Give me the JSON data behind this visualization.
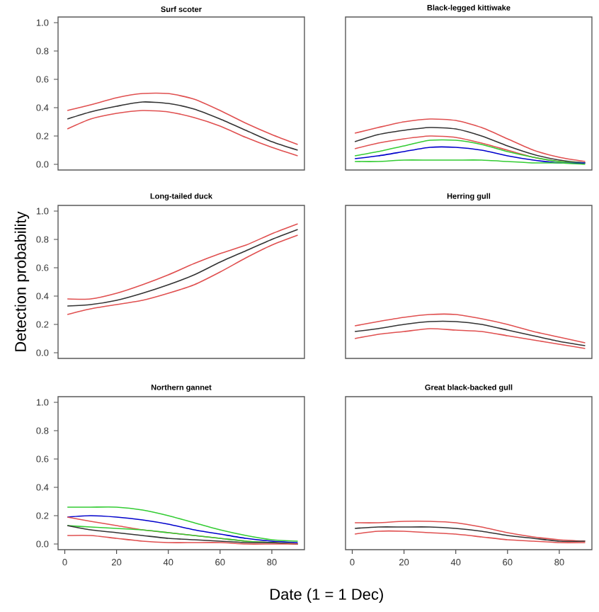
{
  "chart_data": [
    {
      "type": "line",
      "title": "Surf scoter",
      "x": [
        1,
        10,
        20,
        30,
        40,
        50,
        60,
        70,
        80,
        90
      ],
      "xlim": [
        -2.6,
        92.6
      ],
      "ylim": [
        -0.04,
        1.04
      ],
      "tick_labels": "y",
      "yticks": [
        {
          "value": 0,
          "label": "0.0"
        },
        {
          "value": 0.2,
          "label": "0.2"
        },
        {
          "value": 0.4,
          "label": "0.4"
        },
        {
          "value": 0.6,
          "label": "0.6"
        },
        {
          "value": 0.8,
          "label": "0.8"
        },
        {
          "value": 1,
          "label": "1.0"
        }
      ],
      "series": [
        {
          "color": "#e05050",
          "values": [
            0.38,
            0.42,
            0.47,
            0.5,
            0.5,
            0.46,
            0.38,
            0.29,
            0.21,
            0.14
          ]
        },
        {
          "color": "#333333",
          "values": [
            0.32,
            0.37,
            0.41,
            0.44,
            0.43,
            0.39,
            0.32,
            0.24,
            0.16,
            0.1
          ]
        },
        {
          "color": "#e05050",
          "values": [
            0.25,
            0.32,
            0.36,
            0.38,
            0.37,
            0.33,
            0.27,
            0.19,
            0.12,
            0.06
          ]
        }
      ]
    },
    {
      "type": "line",
      "title": "Black-legged kittiwake",
      "x": [
        1,
        10,
        20,
        30,
        40,
        50,
        60,
        70,
        80,
        90
      ],
      "xlim": [
        -2.6,
        92.6
      ],
      "ylim": [
        -0.04,
        1.04
      ],
      "tick_labels": false,
      "series": [
        {
          "color": "#e05050",
          "values": [
            0.22,
            0.26,
            0.3,
            0.32,
            0.31,
            0.26,
            0.18,
            0.1,
            0.05,
            0.02
          ]
        },
        {
          "color": "#333333",
          "values": [
            0.16,
            0.21,
            0.24,
            0.26,
            0.25,
            0.2,
            0.13,
            0.07,
            0.03,
            0.01
          ]
        },
        {
          "color": "#e05050",
          "values": [
            0.11,
            0.15,
            0.18,
            0.2,
            0.19,
            0.15,
            0.1,
            0.05,
            0.02,
            0.01
          ]
        },
        {
          "color": "#33cc33",
          "values": [
            0.06,
            0.09,
            0.13,
            0.17,
            0.17,
            0.14,
            0.09,
            0.05,
            0.02,
            0.01
          ]
        },
        {
          "color": "#0000cc",
          "values": [
            0.04,
            0.06,
            0.09,
            0.12,
            0.12,
            0.1,
            0.06,
            0.03,
            0.01,
            0.01
          ]
        },
        {
          "color": "#33cc33",
          "values": [
            0.02,
            0.02,
            0.03,
            0.03,
            0.03,
            0.03,
            0.02,
            0.01,
            0.01,
            0.0
          ]
        }
      ]
    },
    {
      "type": "line",
      "title": "Long-tailed duck",
      "ylabel": "Detection probability",
      "x": [
        1,
        10,
        20,
        30,
        40,
        50,
        60,
        70,
        80,
        90
      ],
      "xlim": [
        -2.6,
        92.6
      ],
      "ylim": [
        -0.04,
        1.04
      ],
      "tick_labels": "y",
      "yticks": [
        {
          "value": 0,
          "label": "0.0"
        },
        {
          "value": 0.2,
          "label": "0.2"
        },
        {
          "value": 0.4,
          "label": "0.4"
        },
        {
          "value": 0.6,
          "label": "0.6"
        },
        {
          "value": 0.8,
          "label": "0.8"
        },
        {
          "value": 1,
          "label": "1.0"
        }
      ],
      "series": [
        {
          "color": "#e05050",
          "values": [
            0.38,
            0.38,
            0.42,
            0.48,
            0.55,
            0.63,
            0.7,
            0.76,
            0.84,
            0.91
          ]
        },
        {
          "color": "#333333",
          "values": [
            0.33,
            0.34,
            0.37,
            0.42,
            0.48,
            0.55,
            0.64,
            0.72,
            0.8,
            0.87
          ]
        },
        {
          "color": "#e05050",
          "values": [
            0.27,
            0.31,
            0.34,
            0.37,
            0.42,
            0.48,
            0.57,
            0.67,
            0.76,
            0.83
          ]
        }
      ]
    },
    {
      "type": "line",
      "title": "Herring gull",
      "x": [
        1,
        10,
        20,
        30,
        40,
        50,
        60,
        70,
        80,
        90
      ],
      "xlim": [
        -2.6,
        92.6
      ],
      "ylim": [
        -0.04,
        1.04
      ],
      "tick_labels": false,
      "series": [
        {
          "color": "#e05050",
          "values": [
            0.19,
            0.22,
            0.25,
            0.27,
            0.27,
            0.24,
            0.2,
            0.15,
            0.11,
            0.07
          ]
        },
        {
          "color": "#333333",
          "values": [
            0.15,
            0.17,
            0.2,
            0.22,
            0.22,
            0.2,
            0.16,
            0.12,
            0.08,
            0.05
          ]
        },
        {
          "color": "#e05050",
          "values": [
            0.1,
            0.13,
            0.15,
            0.17,
            0.16,
            0.15,
            0.12,
            0.09,
            0.06,
            0.03
          ]
        }
      ]
    },
    {
      "type": "line",
      "title": "Northern gannet",
      "xlabel": "Date (1 = 1 Dec)",
      "x": [
        1,
        10,
        20,
        30,
        40,
        50,
        60,
        70,
        80,
        90
      ],
      "xlim": [
        -2.6,
        92.6
      ],
      "ylim": [
        -0.04,
        1.04
      ],
      "xticks": [
        0,
        20,
        40,
        60,
        80
      ],
      "yticks": [
        {
          "value": 0,
          "label": "0.0"
        },
        {
          "value": 0.2,
          "label": "0.2"
        },
        {
          "value": 0.4,
          "label": "0.4"
        },
        {
          "value": 0.6,
          "label": "0.6"
        },
        {
          "value": 0.8,
          "label": "0.8"
        },
        {
          "value": 1,
          "label": "1.0"
        }
      ],
      "series": [
        {
          "color": "#33cc33",
          "values": [
            0.26,
            0.26,
            0.26,
            0.24,
            0.2,
            0.15,
            0.1,
            0.06,
            0.03,
            0.02
          ]
        },
        {
          "color": "#0000cc",
          "values": [
            0.19,
            0.2,
            0.19,
            0.17,
            0.14,
            0.1,
            0.07,
            0.04,
            0.02,
            0.01
          ]
        },
        {
          "color": "#e05050",
          "values": [
            0.19,
            0.16,
            0.13,
            0.1,
            0.08,
            0.06,
            0.04,
            0.02,
            0.01,
            0.0
          ]
        },
        {
          "color": "#33cc33",
          "values": [
            0.13,
            0.12,
            0.11,
            0.1,
            0.08,
            0.06,
            0.04,
            0.02,
            0.01,
            0.0
          ]
        },
        {
          "color": "#333333",
          "values": [
            0.13,
            0.1,
            0.08,
            0.06,
            0.04,
            0.03,
            0.02,
            0.01,
            0.01,
            0.0
          ]
        },
        {
          "color": "#e05050",
          "values": [
            0.06,
            0.06,
            0.04,
            0.02,
            0.01,
            0.01,
            0.01,
            0.0,
            0.0,
            0.0
          ]
        }
      ]
    },
    {
      "type": "line",
      "title": "Great black-backed gull",
      "x": [
        1,
        10,
        20,
        30,
        40,
        50,
        60,
        70,
        80,
        90
      ],
      "xlim": [
        -2.6,
        92.6
      ],
      "ylim": [
        -0.04,
        1.04
      ],
      "tick_labels": "x",
      "xticks": [
        0,
        20,
        40,
        60,
        80
      ],
      "series": [
        {
          "color": "#e05050",
          "values": [
            0.15,
            0.15,
            0.16,
            0.16,
            0.15,
            0.12,
            0.08,
            0.05,
            0.03,
            0.02
          ]
        },
        {
          "color": "#333333",
          "values": [
            0.11,
            0.12,
            0.12,
            0.12,
            0.11,
            0.09,
            0.06,
            0.04,
            0.02,
            0.02
          ]
        },
        {
          "color": "#e05050",
          "values": [
            0.07,
            0.09,
            0.09,
            0.08,
            0.07,
            0.05,
            0.03,
            0.02,
            0.01,
            0.01
          ]
        }
      ]
    }
  ]
}
